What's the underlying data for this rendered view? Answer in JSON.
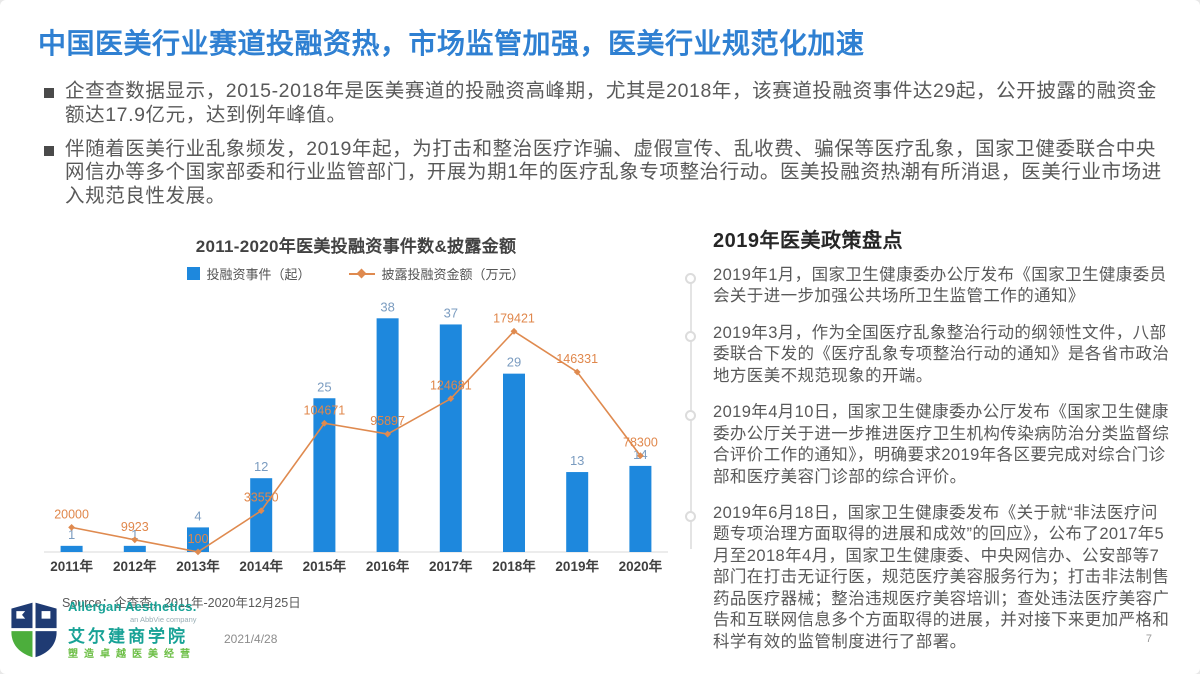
{
  "title": "中国医美行业赛道投融资热，市场监管加强，医美行业规范化加速",
  "bullets": [
    "企查查数据显示，2015-2018年是医美赛道的投融资高峰期，尤其是2018年，该赛道投融资事件达29起，公开披露的融资金额达17.9亿元，达到例年峰值。",
    "伴随着医美行业乱象频发，2019年起，为打击和整治医疗诈骗、虚假宣传、乱收费、骗保等医疗乱象，国家卫健委联合中央网信办等多个国家部委和行业监管部门，开展为期1年的医疗乱象专项整治行动。医美投融资热潮有所消退，医美行业市场进入规范良性发展。"
  ],
  "chart": {
    "source": "Source：企查查，2011年-2020年12月25日"
  },
  "chart_data": {
    "type": "bar",
    "title": "2011-2020年医美投融资事件数&披露金额",
    "categories": [
      "2011年",
      "2012年",
      "2013年",
      "2014年",
      "2015年",
      "2016年",
      "2017年",
      "2018年",
      "2019年",
      "2020年"
    ],
    "series": [
      {
        "name": "投融资事件（起）",
        "type": "bar",
        "values": [
          1,
          1,
          4,
          12,
          25,
          38,
          37,
          29,
          13,
          14
        ],
        "color": "#1E88DD",
        "axis_max": 40
      },
      {
        "name": "披露投融资金额（万元）",
        "type": "line",
        "values": [
          20000,
          9923,
          100,
          33550,
          104671,
          95897,
          124681,
          179421,
          146331,
          78300
        ],
        "color": "#DF8A4F",
        "axis_max": 200000
      }
    ],
    "legend_position": "top",
    "grid": false
  },
  "policy": {
    "title": "2019年医美政策盘点",
    "items": [
      "2019年1月，国家卫生健康委办公厅发布《国家卫生健康委员会关于进一步加强公共场所卫生监管工作的通知》",
      "2019年3月，作为全国医疗乱象整治行动的纲领性文件，八部委联合下发的《医疗乱象专项整治行动的通知》是各省市政治地方医美不规范现象的开端。",
      "2019年4月10日，国家卫生健康委办公厅发布《国家卫生健康委办公厅关于进一步推进医疗卫生机构传染病防治分类监督综合评价工作的通知》，明确要求2019年各区要完成对综合门诊部和医疗美容门诊部的综合评价。",
      "2019年6月18日，国家卫生健康委发布《关于就“非法医疗问题专项治理方面取得的进展和成效”的回应》，公布了2017年5月至2018年4月，国家卫生健康委、中央网信办、公安部等7部门在打击无证行医，规范医疗美容服务行为；打击非法制售药品医疗器械；整治违规医疗美容培训；查处违法医疗美容广告和互联网信息多个方面取得的进展，并对接下来更加严格和科学有效的监管制度进行了部署。"
    ]
  },
  "footer": {
    "brand": "Allergan Aesthetics.",
    "abbvie": "an AbbVie company",
    "cn": "艾尔建商学院",
    "slogan": "塑造卓越医美经营",
    "date": "2021/4/28",
    "page": "7"
  },
  "colors": {
    "title": "#2F80D2",
    "bar": "#1E88DD",
    "line": "#DF8A4F",
    "bar_label": "#7B9CC0",
    "line_label": "#E0874B",
    "axis": "#d9d9d9",
    "category_label": "#3f3f3f"
  }
}
